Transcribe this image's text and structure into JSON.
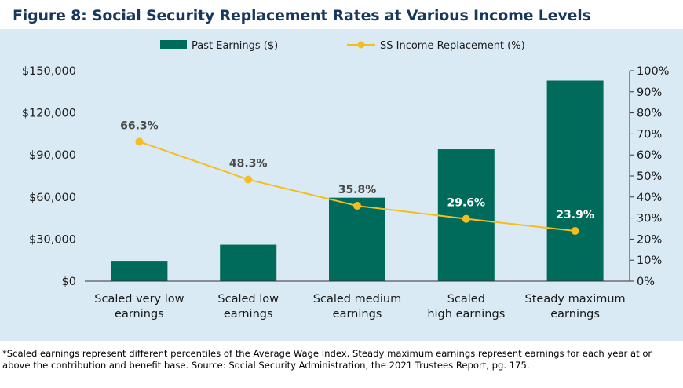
{
  "figure_label": "Figure 8:",
  "figure_title": "Social Security Replacement Rates at Various Income Levels",
  "footnote": "*Scaled earnings represent different percentiles of the Average Wage Index. Steady maximum earnings represent earnings for each year at or above the contribution and benefit base. Source: Social Security Administration, the 2021 Trustees Report, pg. 175.",
  "colors": {
    "bar": "#006b5a",
    "line": "#f5bd1f",
    "title": "#17375e",
    "panel": "#daeaf4"
  },
  "chart_data": {
    "type": "bar",
    "categories": [
      [
        "Scaled very low",
        "earnings"
      ],
      [
        "Scaled low",
        "earnings"
      ],
      [
        "Scaled medium",
        "earnings"
      ],
      [
        "Scaled",
        "high earnings"
      ],
      [
        "Steady maximum",
        "earnings"
      ]
    ],
    "series": [
      {
        "name": "Past Earnings ($)",
        "type": "bar",
        "axis": "left",
        "values": [
          14500,
          26000,
          59500,
          94000,
          143000
        ]
      },
      {
        "name": "SS Income Replacement (%)",
        "type": "line",
        "axis": "right",
        "values": [
          66.3,
          48.3,
          35.8,
          29.6,
          23.9
        ],
        "labels": [
          "66.3%",
          "48.3%",
          "35.8%",
          "29.6%",
          "23.9%"
        ]
      }
    ],
    "y_left": {
      "range": [
        0,
        150000
      ],
      "ticks": [
        0,
        30000,
        60000,
        90000,
        120000,
        150000
      ],
      "tick_labels": [
        "$0",
        "$30,000",
        "$60,000",
        "$90,000",
        "$120,000",
        "$150,000"
      ]
    },
    "y_right": {
      "range": [
        0,
        100
      ],
      "ticks": [
        0,
        10,
        20,
        30,
        40,
        50,
        60,
        70,
        80,
        90,
        100
      ],
      "tick_labels": [
        "0%",
        "10%",
        "20%",
        "30%",
        "40%",
        "50%",
        "60%",
        "70%",
        "80%",
        "90%",
        "100%"
      ]
    },
    "legend_position": "top-center",
    "grid": false
  }
}
